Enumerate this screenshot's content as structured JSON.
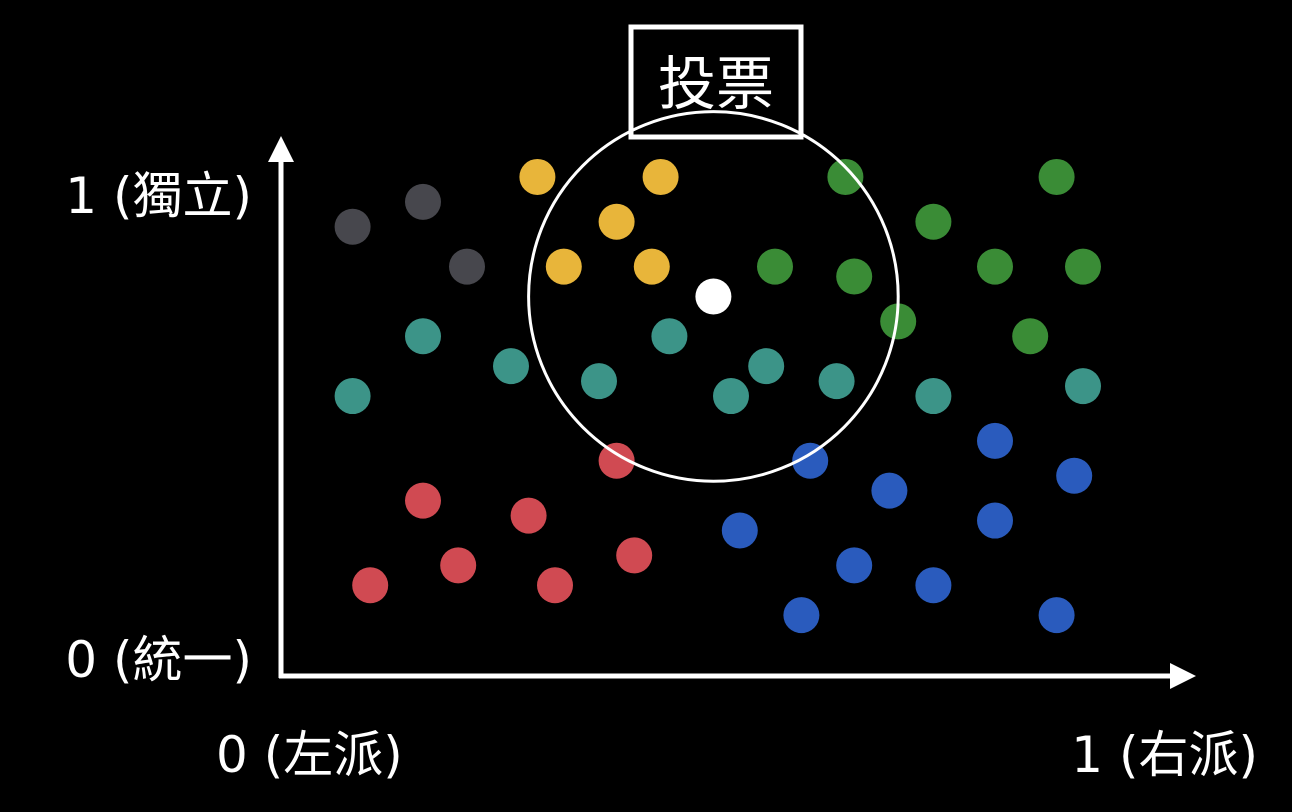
{
  "chart_data": {
    "type": "scatter",
    "title": "投票",
    "x_tick_labels": [
      "0 (左派)",
      "1 (右派)"
    ],
    "y_tick_labels": [
      "0 (統一)",
      "1 (獨立)"
    ],
    "xlim": [
      0,
      1
    ],
    "ylim": [
      0,
      1
    ],
    "grid": false,
    "legend": "none",
    "series": [
      {
        "color": "#47474d",
        "points": [
          [
            0.07,
            0.87
          ],
          [
            0.15,
            0.92
          ],
          [
            0.2,
            0.79
          ]
        ]
      },
      {
        "color": "#e8b53a",
        "points": [
          [
            0.28,
            0.97
          ],
          [
            0.42,
            0.97
          ],
          [
            0.37,
            0.88
          ],
          [
            0.31,
            0.79
          ],
          [
            0.41,
            0.79
          ]
        ]
      },
      {
        "color": "#3c9488",
        "points": [
          [
            0.07,
            0.53
          ],
          [
            0.15,
            0.65
          ],
          [
            0.25,
            0.59
          ],
          [
            0.35,
            0.56
          ],
          [
            0.43,
            0.65
          ],
          [
            0.5,
            0.53
          ],
          [
            0.54,
            0.59
          ],
          [
            0.62,
            0.56
          ],
          [
            0.73,
            0.53
          ],
          [
            0.9,
            0.55
          ]
        ]
      },
      {
        "color": "#3a8c36",
        "points": [
          [
            0.63,
            0.97
          ],
          [
            0.73,
            0.88
          ],
          [
            0.55,
            0.79
          ],
          [
            0.64,
            0.77
          ],
          [
            0.69,
            0.68
          ],
          [
            0.8,
            0.79
          ],
          [
            0.87,
            0.97
          ],
          [
            0.9,
            0.79
          ],
          [
            0.84,
            0.65
          ]
        ]
      },
      {
        "color": "#d04a52",
        "points": [
          [
            0.37,
            0.4
          ],
          [
            0.15,
            0.32
          ],
          [
            0.27,
            0.29
          ],
          [
            0.39,
            0.21
          ],
          [
            0.19,
            0.19
          ],
          [
            0.09,
            0.15
          ],
          [
            0.3,
            0.15
          ]
        ]
      },
      {
        "color": "#2a5bbd",
        "points": [
          [
            0.59,
            0.4
          ],
          [
            0.51,
            0.26
          ],
          [
            0.68,
            0.34
          ],
          [
            0.64,
            0.19
          ],
          [
            0.73,
            0.15
          ],
          [
            0.8,
            0.44
          ],
          [
            0.89,
            0.37
          ],
          [
            0.8,
            0.28
          ],
          [
            0.58,
            0.09
          ],
          [
            0.87,
            0.09
          ]
        ]
      }
    ],
    "highlight_point": {
      "color": "#ffffff",
      "x": 0.48,
      "y": 0.73
    },
    "highlight_circle_radius": 0.21
  }
}
